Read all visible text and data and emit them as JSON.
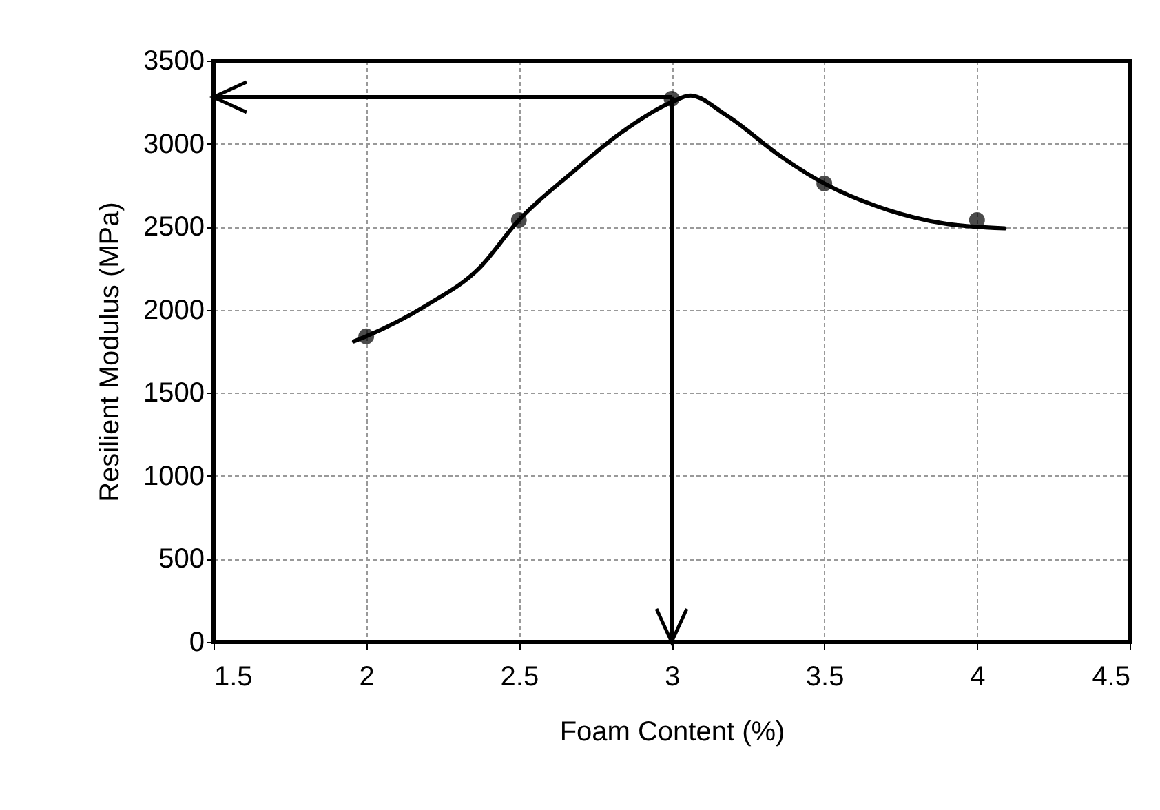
{
  "chart_data": {
    "type": "scatter",
    "xlabel": "Foam Content (%)",
    "ylabel": "Resilient Modulus (MPa)",
    "x": [
      2,
      2.5,
      3,
      3.5,
      4
    ],
    "series": [
      {
        "color": "#000000",
        "values": [
          1840,
          2540,
          3270,
          2760,
          2540
        ],
        "marker": "circle"
      },
      {
        "type": "line",
        "color": "#000000",
        "x": [
          1.96,
          2.0,
          2.2,
          2.37,
          2.5,
          2.67,
          2.83,
          3.0,
          3.06,
          3.18,
          3.36,
          3.5,
          3.71,
          3.89,
          4.09
        ],
        "values": [
          1810,
          1840,
          2030,
          2250,
          2540,
          2820,
          3060,
          3250,
          3290,
          3170,
          2920,
          2760,
          2600,
          2520,
          2490
        ],
        "marker": "none"
      }
    ],
    "ref_lines": [
      {
        "axis": "y",
        "value": 3280,
        "color": "#000000"
      },
      {
        "axis": "x",
        "value": 3,
        "color": "#000000"
      }
    ],
    "xlim": [
      1.5,
      4.5
    ],
    "xticks": [
      1.5,
      2,
      2.5,
      3,
      3.5,
      4,
      4.5
    ],
    "ylim": [
      0,
      3500
    ],
    "yticks": [
      0,
      500,
      1000,
      1500,
      2000,
      2500,
      3000,
      3500
    ],
    "grid": true
  }
}
